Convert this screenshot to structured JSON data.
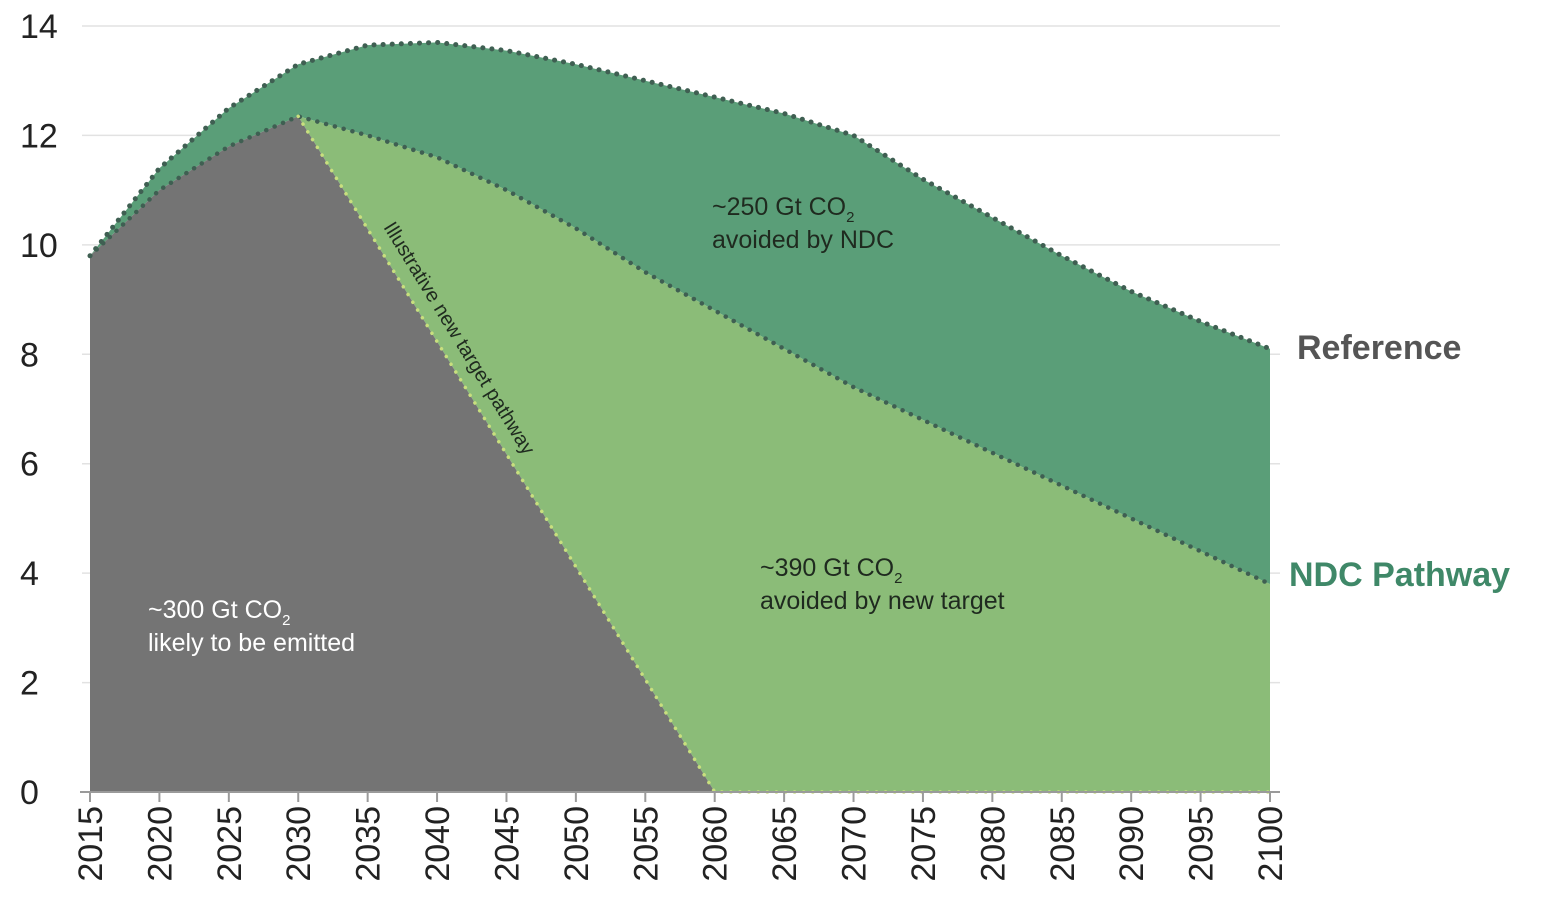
{
  "chart_data": {
    "type": "area",
    "xlim": [
      2015,
      2100
    ],
    "ylim": [
      0,
      14
    ],
    "x_ticks": [
      "2015",
      "2020",
      "2025",
      "2030",
      "2035",
      "2040",
      "2045",
      "2050",
      "2055",
      "2060",
      "2065",
      "2070",
      "2075",
      "2080",
      "2085",
      "2090",
      "2095",
      "2100"
    ],
    "y_ticks": [
      "0",
      "2",
      "4",
      "6",
      "8",
      "10",
      "12",
      "14"
    ],
    "grid": true,
    "series": [
      {
        "name": "Reference",
        "color": "#5a9e78",
        "x": [
          2015,
          2020,
          2025,
          2030,
          2035,
          2040,
          2045,
          2050,
          2055,
          2060,
          2065,
          2070,
          2075,
          2080,
          2085,
          2090,
          2095,
          2100
        ],
        "y": [
          9.8,
          11.4,
          12.5,
          13.3,
          13.65,
          13.7,
          13.55,
          13.3,
          13.0,
          12.7,
          12.4,
          12.0,
          11.2,
          10.5,
          9.8,
          9.15,
          8.6,
          8.1
        ]
      },
      {
        "name": "NDC Pathway",
        "color": "#8bbc78",
        "x": [
          2015,
          2020,
          2025,
          2030,
          2035,
          2040,
          2045,
          2050,
          2055,
          2060,
          2065,
          2070,
          2075,
          2080,
          2085,
          2090,
          2095,
          2100
        ],
        "y": [
          9.8,
          11.0,
          11.8,
          12.35,
          12.0,
          11.6,
          11.0,
          10.3,
          9.5,
          8.8,
          8.1,
          7.4,
          6.8,
          6.2,
          5.6,
          5.0,
          4.4,
          3.8
        ]
      },
      {
        "name": "Illustrative new target pathway",
        "color": "#747474",
        "x": [
          2015,
          2020,
          2025,
          2030,
          2060,
          2100
        ],
        "y": [
          9.8,
          11.0,
          11.8,
          12.35,
          0,
          0
        ]
      }
    ],
    "annotations": {
      "ndc_avoided": {
        "line1": "~250 Gt CO",
        "sub": "2",
        "line2": "avoided by NDC"
      },
      "target_avoided": {
        "line1": "~390 Gt CO",
        "sub": "2",
        "line2": "avoided by new target"
      },
      "emitted": {
        "line1": "~300 Gt CO",
        "sub": "2",
        "line2": "likely to be emitted"
      }
    },
    "series_labels": {
      "reference": "Reference",
      "ndc": "NDC Pathway",
      "pathway": "Illustrative new target pathway"
    },
    "colors": {
      "reference_label": "#555555",
      "ndc_label": "#3f8868",
      "dots": "#3f5f52",
      "pathway_dots": "#c8df7e",
      "grid": "#e2e2e2",
      "axis": "#9a9a9a",
      "emitted_text": "#ffffff",
      "avoided_text": "#1f2a1f"
    }
  }
}
